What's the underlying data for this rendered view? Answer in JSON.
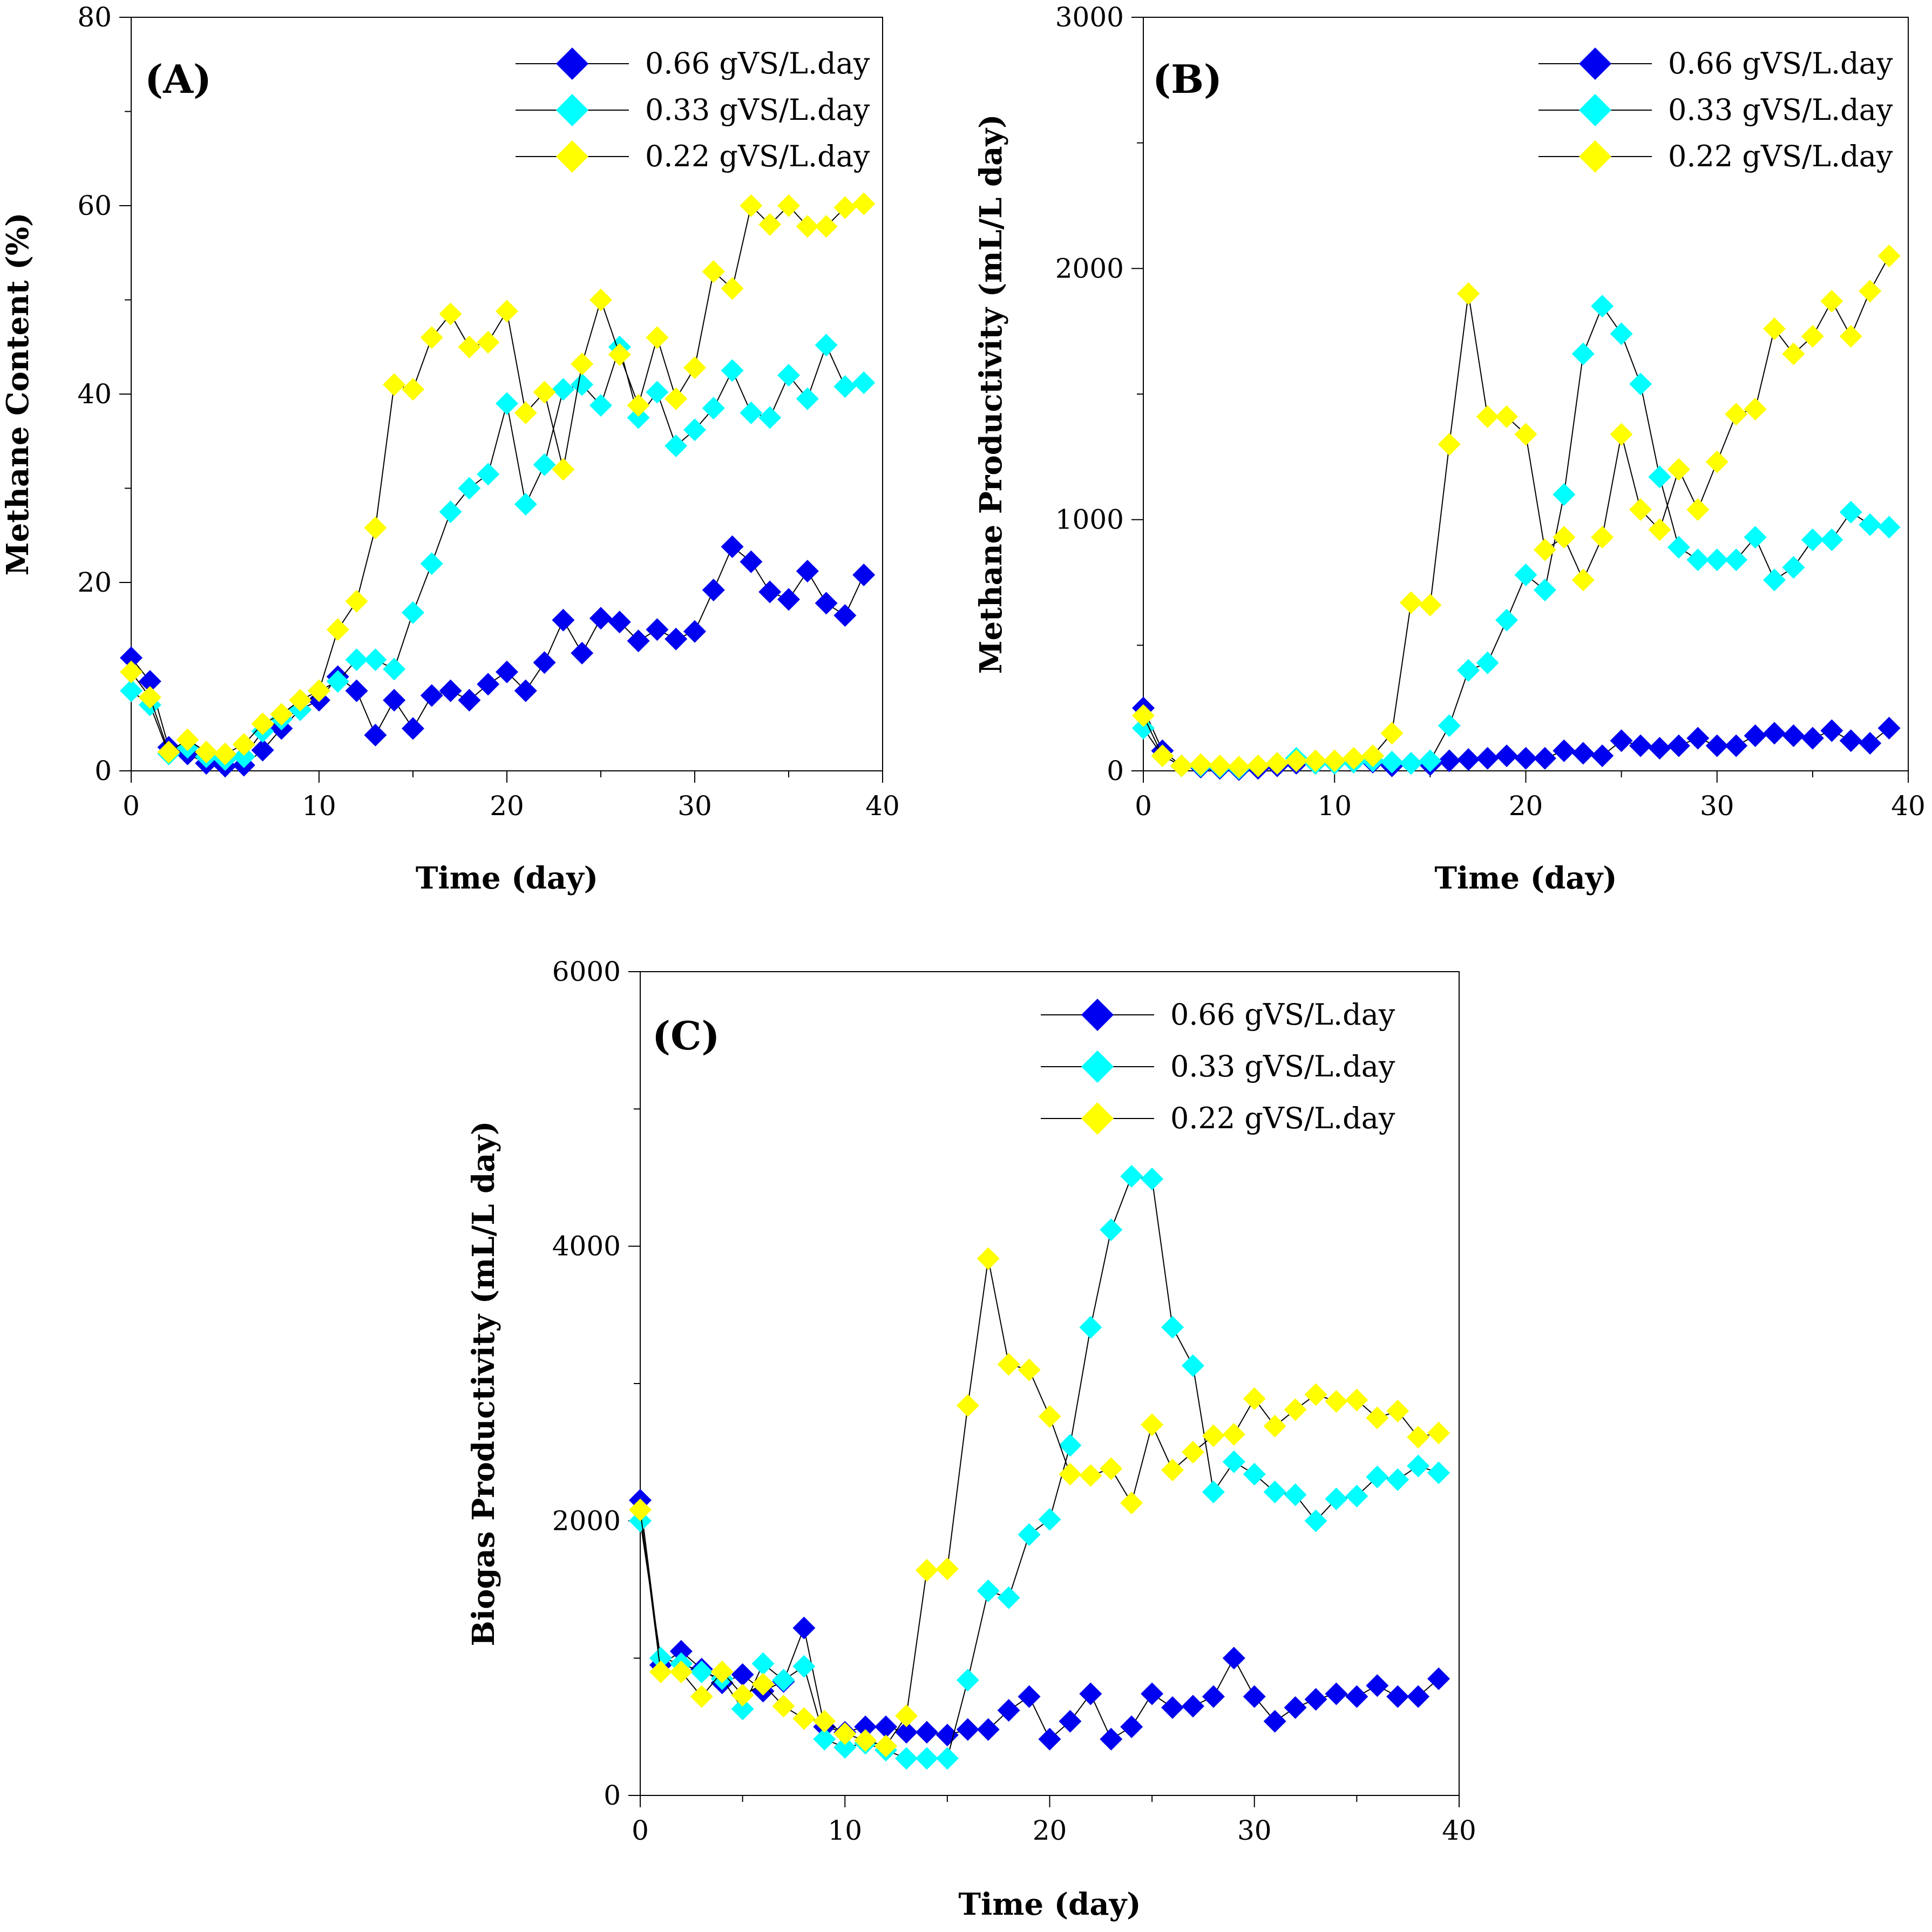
{
  "colors": {
    "series_0.66": "#0000f0",
    "series_0.33": "#00ffff",
    "series_0.22": "#ffff00",
    "line": "#000000",
    "axis": "#000000"
  },
  "chart_data": [
    {
      "id": "A",
      "type": "line",
      "label": "(A)",
      "xlabel": "Time (day)",
      "ylabel": "Methane Content (%)",
      "xlim": [
        0,
        40
      ],
      "ylim": [
        0,
        80
      ],
      "xticks": [
        0,
        10,
        20,
        30,
        40
      ],
      "yticks": [
        0,
        20,
        40,
        60,
        80
      ],
      "legend_position": "top-right",
      "x": [
        0,
        1,
        2,
        3,
        4,
        5,
        6,
        7,
        8,
        9,
        10,
        11,
        12,
        13,
        14,
        15,
        16,
        17,
        18,
        19,
        20,
        21,
        22,
        23,
        24,
        25,
        26,
        27,
        28,
        29,
        30,
        31,
        32,
        33,
        34,
        35,
        36,
        37,
        38,
        39
      ],
      "series": [
        {
          "name": "0.66 gVS/L.day",
          "color_key": "series_0.66",
          "values": [
            12,
            9.5,
            2.5,
            1.8,
            0.8,
            0.5,
            0.6,
            2.2,
            4.5,
            6.5,
            7.5,
            10,
            8.5,
            3.8,
            7.5,
            4.5,
            8,
            8.5,
            7.5,
            9.2,
            10.5,
            8.5,
            11.5,
            16,
            12.5,
            16.2,
            15.8,
            13.8,
            15,
            14,
            14.8,
            19.2,
            23.8,
            22.2,
            19,
            18.2,
            21.2,
            17.8,
            16.5,
            20.8
          ]
        },
        {
          "name": "0.33 gVS/L.day",
          "color_key": "series_0.33",
          "values": [
            8.5,
            7,
            1.8,
            2.5,
            1.5,
            1.2,
            1.5,
            4.2,
            5.5,
            6.5,
            8.5,
            9.5,
            11.8,
            11.8,
            10.8,
            16.8,
            22,
            27.5,
            30,
            31.5,
            39,
            28.3,
            32.5,
            40.5,
            41,
            38.8,
            45,
            37.5,
            40.2,
            34.5,
            36.2,
            38.5,
            42.5,
            38,
            37.5,
            42,
            39.5,
            45.2,
            40.8,
            41.2
          ]
        },
        {
          "name": "0.22 gVS/L.day",
          "color_key": "series_0.22",
          "values": [
            10.5,
            7.8,
            2,
            3.3,
            2,
            1.8,
            2.8,
            5,
            6,
            7.5,
            8.5,
            15,
            18,
            25.8,
            41,
            40.5,
            46,
            48.5,
            45,
            45.5,
            48.8,
            38,
            40.2,
            32,
            43.2,
            50,
            44.2,
            38.8,
            46,
            39.5,
            42.8,
            53,
            51.2,
            60,
            58,
            60,
            57.8,
            57.8,
            59.8,
            60.2
          ]
        }
      ]
    },
    {
      "id": "B",
      "type": "line",
      "label": "(B)",
      "xlabel": "Time (day)",
      "ylabel": "Methane Productivity (mL/L day)",
      "xlim": [
        0,
        40
      ],
      "ylim": [
        0,
        3000
      ],
      "xticks": [
        0,
        10,
        20,
        30,
        40
      ],
      "yticks": [
        0,
        1000,
        2000,
        3000
      ],
      "legend_position": "top-right",
      "x": [
        0,
        1,
        2,
        3,
        4,
        5,
        6,
        7,
        8,
        9,
        10,
        11,
        12,
        13,
        14,
        15,
        16,
        17,
        18,
        19,
        20,
        21,
        22,
        23,
        24,
        25,
        26,
        27,
        28,
        29,
        30,
        31,
        32,
        33,
        34,
        35,
        36,
        37,
        38,
        39
      ],
      "series": [
        {
          "name": "0.66 gVS/L.day",
          "color_key": "series_0.66",
          "values": [
            250,
            80,
            20,
            15,
            10,
            5,
            10,
            20,
            30,
            30,
            30,
            35,
            35,
            20,
            30,
            25,
            40,
            45,
            50,
            60,
            50,
            50,
            80,
            70,
            60,
            120,
            100,
            90,
            100,
            130,
            100,
            100,
            140,
            150,
            140,
            130,
            160,
            120,
            110,
            170
          ]
        },
        {
          "name": "0.33 gVS/L.day",
          "color_key": "series_0.33",
          "values": [
            170,
            60,
            20,
            20,
            15,
            10,
            20,
            30,
            50,
            30,
            30,
            35,
            40,
            35,
            30,
            40,
            180,
            400,
            430,
            600,
            780,
            720,
            1100,
            1660,
            1850,
            1740,
            1540,
            1170,
            890,
            840,
            840,
            840,
            930,
            760,
            810,
            920,
            920,
            1030,
            980,
            970
          ]
        },
        {
          "name": "0.22 gVS/L.day",
          "color_key": "series_0.22",
          "values": [
            220,
            60,
            20,
            25,
            20,
            15,
            20,
            30,
            40,
            40,
            40,
            50,
            60,
            150,
            670,
            660,
            1300,
            1900,
            1410,
            1410,
            1340,
            880,
            930,
            760,
            930,
            1340,
            1040,
            960,
            1200,
            1040,
            1230,
            1420,
            1440,
            1760,
            1660,
            1730,
            1870,
            1730,
            1910,
            2050
          ]
        }
      ]
    },
    {
      "id": "C",
      "type": "line",
      "label": "(C)",
      "xlabel": "Time (day)",
      "ylabel": "Biogas Productivity (mL/L day)",
      "xlim": [
        0,
        40
      ],
      "ylim": [
        0,
        6000
      ],
      "xticks": [
        0,
        10,
        20,
        30,
        40
      ],
      "yticks": [
        0,
        2000,
        4000,
        6000
      ],
      "legend_position": "top-right",
      "x": [
        0,
        1,
        2,
        3,
        4,
        5,
        6,
        7,
        8,
        9,
        10,
        11,
        12,
        13,
        14,
        15,
        16,
        17,
        18,
        19,
        20,
        21,
        22,
        23,
        24,
        25,
        26,
        27,
        28,
        29,
        30,
        31,
        32,
        33,
        34,
        35,
        36,
        37,
        38,
        39
      ],
      "series": [
        {
          "name": "0.66 gVS/L.day",
          "color_key": "series_0.66",
          "values": [
            2150,
            950,
            1050,
            920,
            820,
            880,
            760,
            830,
            1220,
            500,
            460,
            500,
            500,
            460,
            460,
            440,
            480,
            480,
            620,
            720,
            410,
            540,
            740,
            410,
            500,
            740,
            640,
            650,
            720,
            1000,
            720,
            540,
            640,
            700,
            740,
            720,
            800,
            720,
            720,
            850
          ]
        },
        {
          "name": "0.33 gVS/L.day",
          "color_key": "series_0.33",
          "values": [
            2000,
            1000,
            960,
            900,
            850,
            630,
            960,
            840,
            940,
            410,
            350,
            380,
            330,
            270,
            270,
            270,
            840,
            1490,
            1440,
            1900,
            2010,
            2550,
            3410,
            4120,
            4510,
            4490,
            3410,
            3130,
            2210,
            2430,
            2340,
            2210,
            2190,
            2000,
            2160,
            2180,
            2320,
            2300,
            2400,
            2350
          ]
        },
        {
          "name": "0.22 gVS/L.day",
          "color_key": "series_0.22",
          "values": [
            2080,
            900,
            900,
            720,
            900,
            730,
            810,
            650,
            560,
            540,
            450,
            400,
            360,
            580,
            1640,
            1650,
            2840,
            3910,
            3140,
            3100,
            2760,
            2340,
            2330,
            2380,
            2130,
            2700,
            2370,
            2500,
            2620,
            2630,
            2890,
            2690,
            2810,
            2920,
            2870,
            2880,
            2750,
            2800,
            2610,
            2640
          ]
        }
      ]
    }
  ]
}
